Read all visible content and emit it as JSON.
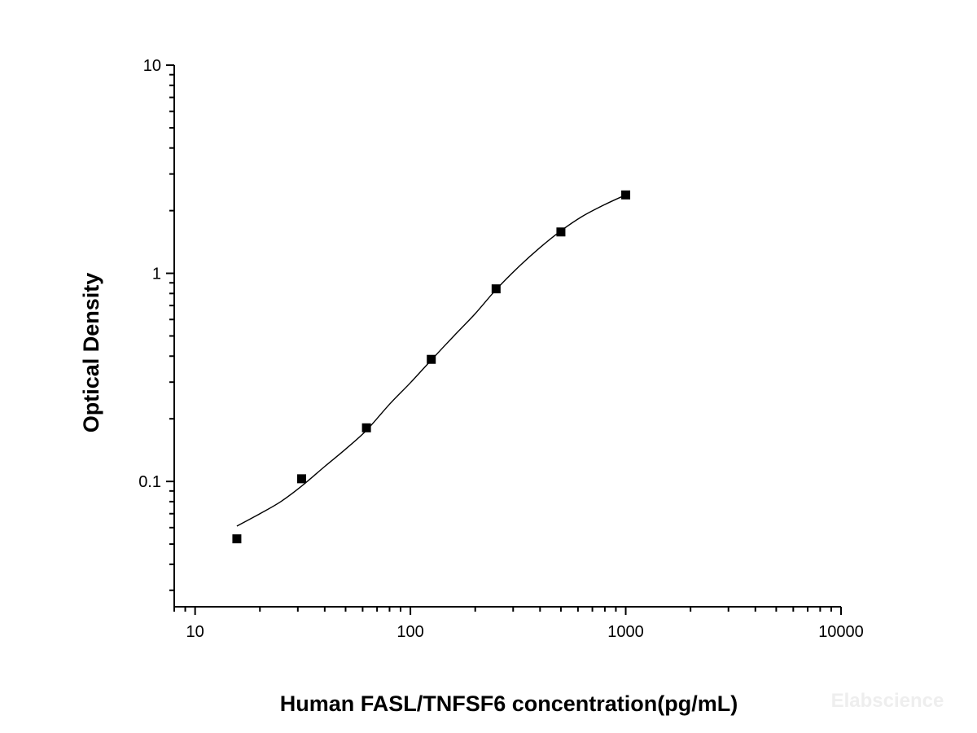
{
  "chart_data": {
    "type": "scatter",
    "xlabel": "Human FASL/TNFSF6 concentration(pg/mL)",
    "ylabel": "Optical Density",
    "x_scale": "log",
    "y_scale": "log",
    "xlim": [
      8,
      10000
    ],
    "ylim": [
      0.025,
      10
    ],
    "x_ticks": [
      10,
      100,
      1000,
      10000
    ],
    "x_tick_labels": [
      "10",
      "100",
      "1000",
      "10000"
    ],
    "y_ticks": [
      0.1,
      1,
      10
    ],
    "y_tick_labels": [
      "0.1",
      "1",
      "10"
    ],
    "grid": false,
    "legend": "none",
    "series": [
      {
        "marker": "square",
        "color": "#000000",
        "points": [
          {
            "x": 15.63,
            "y": 0.053
          },
          {
            "x": 31.25,
            "y": 0.103
          },
          {
            "x": 62.5,
            "y": 0.181
          },
          {
            "x": 125,
            "y": 0.386
          },
          {
            "x": 250,
            "y": 0.842
          },
          {
            "x": 500,
            "y": 1.58
          },
          {
            "x": 1000,
            "y": 2.38
          }
        ]
      }
    ],
    "fit_curve": {
      "color": "#000000",
      "points": [
        {
          "x": 15.63,
          "y": 0.061
        },
        {
          "x": 20,
          "y": 0.07
        },
        {
          "x": 25,
          "y": 0.08
        },
        {
          "x": 31.25,
          "y": 0.095
        },
        {
          "x": 40,
          "y": 0.118
        },
        {
          "x": 50,
          "y": 0.143
        },
        {
          "x": 62.5,
          "y": 0.176
        },
        {
          "x": 80,
          "y": 0.235
        },
        {
          "x": 100,
          "y": 0.298
        },
        {
          "x": 125,
          "y": 0.383
        },
        {
          "x": 160,
          "y": 0.503
        },
        {
          "x": 200,
          "y": 0.64
        },
        {
          "x": 250,
          "y": 0.835
        },
        {
          "x": 320,
          "y": 1.08
        },
        {
          "x": 400,
          "y": 1.33
        },
        {
          "x": 500,
          "y": 1.6
        },
        {
          "x": 630,
          "y": 1.88
        },
        {
          "x": 800,
          "y": 2.14
        },
        {
          "x": 1000,
          "y": 2.38
        }
      ]
    },
    "watermark": "Elabscience"
  }
}
